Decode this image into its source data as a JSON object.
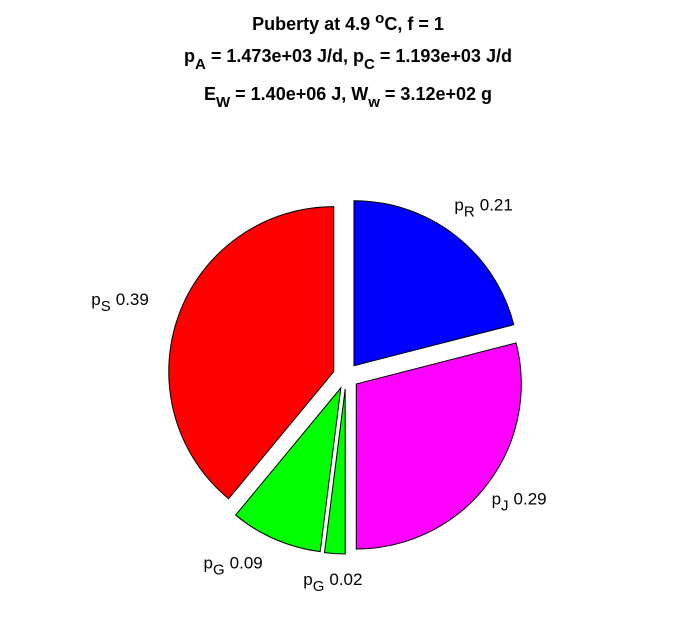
{
  "chart_data": {
    "type": "pie",
    "title": [
      [
        {
          "text": "Puberty at 4.9 "
        },
        {
          "text": "o",
          "shift": "sup"
        },
        {
          "text": "C, f = 1"
        }
      ],
      [
        {
          "text": "p"
        },
        {
          "text": "A",
          "shift": "sub"
        },
        {
          "text": " = 1.473e+03 J/d,  p"
        },
        {
          "text": "C",
          "shift": "sub"
        },
        {
          "text": " = 1.193e+03 J/d"
        }
      ],
      [
        {
          "text": "E"
        },
        {
          "text": "W",
          "shift": "sub"
        },
        {
          "text": " = 1.40e+06 J, W"
        },
        {
          "text": "w",
          "shift": "sub"
        },
        {
          "text": " = 3.12e+02 g"
        }
      ]
    ],
    "label_prefix": "p",
    "categories": [
      "R",
      "J",
      "G",
      "G",
      "S"
    ],
    "values": [
      0.21,
      0.29,
      0.02,
      0.09,
      0.39
    ],
    "colors": [
      "#0000ff",
      "#ff00ff",
      "#00ff00",
      "#00ff00",
      "#ff0000"
    ],
    "exploded": true
  }
}
